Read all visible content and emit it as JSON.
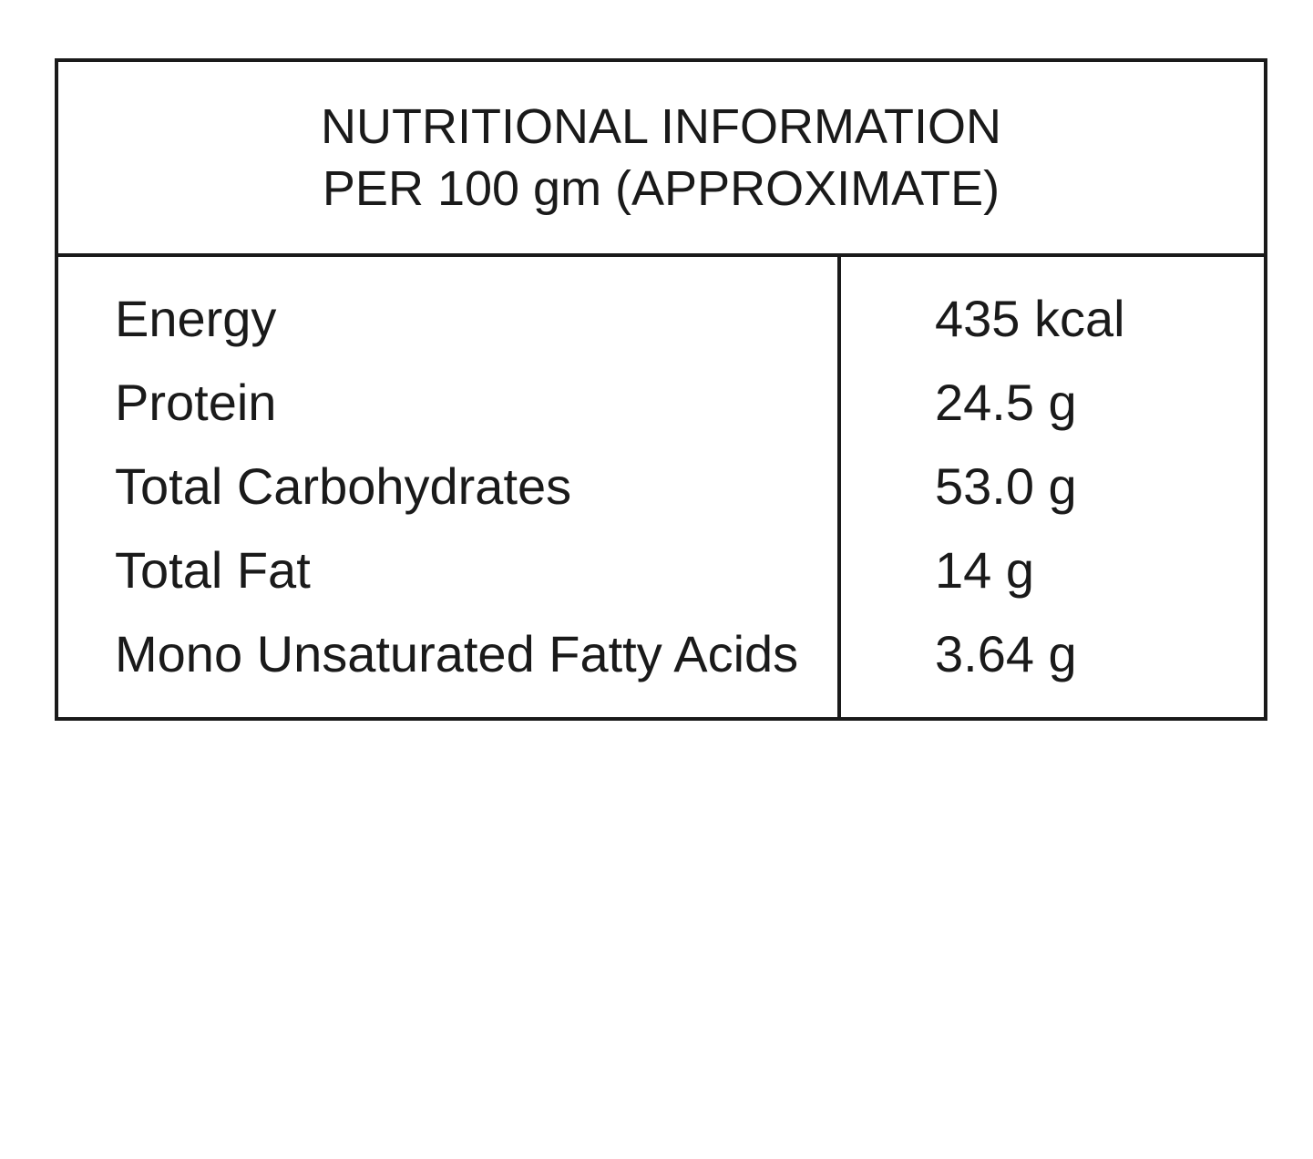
{
  "panel": {
    "title_line_1": "NUTRITIONAL INFORMATION",
    "title_line_2": "PER 100 gm (APPROXIMATE)"
  },
  "nutrients": [
    {
      "label": "Energy",
      "value": "435 kcal"
    },
    {
      "label": "Protein",
      "value": "24.5 g"
    },
    {
      "label": "Total Carbohydrates",
      "value": "53.0 g"
    },
    {
      "label": "Total Fat",
      "value": "14 g"
    },
    {
      "label": "Mono Unsaturated Fatty Acids",
      "value": "3.64 g"
    }
  ]
}
